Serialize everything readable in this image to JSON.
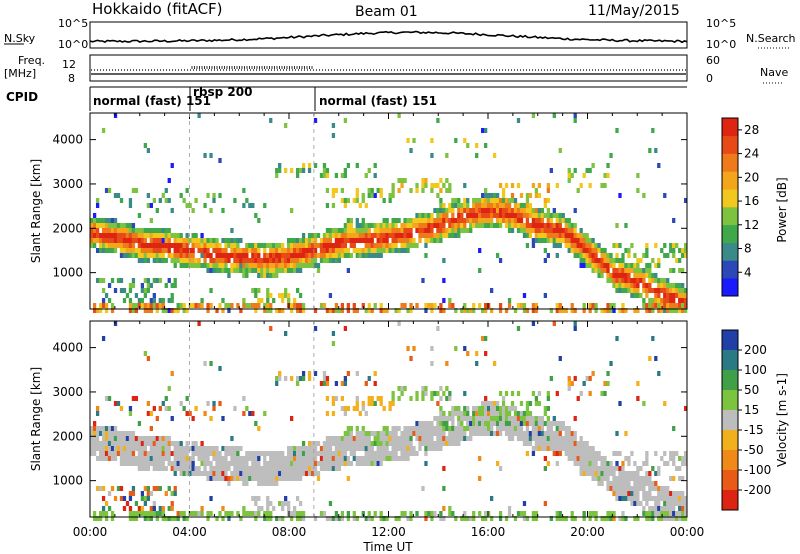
{
  "header": {
    "station": "Hokkaido (fitACF)",
    "beam": "Beam 01",
    "date": "11/May/2015"
  },
  "top_panel": {
    "left_label": "N.Sky",
    "right_label": "N.Search",
    "left_ticks": [
      "10^5",
      "10^0"
    ],
    "right_ticks": [
      "10^5",
      "10^0"
    ]
  },
  "freq_panel": {
    "left_label_1": "Freq.",
    "left_label_2": "[MHz]",
    "left_ticks": [
      "12",
      "8"
    ],
    "right_ticks": [
      "60",
      "0"
    ],
    "right_label": "Nave"
  },
  "cpid": {
    "label": "CPID",
    "segments": [
      {
        "text": "normal (fast) 151",
        "start_hour": 0,
        "end_hour": 4
      },
      {
        "text": "rbsp 200",
        "start_hour": 4,
        "end_hour": 9
      },
      {
        "text": "normal (fast) 151",
        "start_hour": 9,
        "end_hour": 24
      }
    ]
  },
  "axes": {
    "ylabel": "Slant Range [km]",
    "yticks": [
      "1000",
      "2000",
      "3000",
      "4000"
    ],
    "xticks": [
      "00:00",
      "04:00",
      "08:00",
      "12:00",
      "16:00",
      "20:00",
      "00:00"
    ],
    "xlabel": "Time UT"
  },
  "power_colorbar": {
    "label": "Power [dB]",
    "ticks": [
      "4",
      "8",
      "12",
      "16",
      "20",
      "24",
      "28"
    ],
    "colors": [
      "#1a1aff",
      "#2b47b8",
      "#3a8a8a",
      "#3fa84a",
      "#7dc340",
      "#f2c81e",
      "#f3a51c",
      "#ee7a19",
      "#e84a17",
      "#dd2512"
    ]
  },
  "velocity_colorbar": {
    "label": "Velocity [m s-1]",
    "ticks": [
      "200",
      "100",
      "50",
      "15",
      "-15",
      "-50",
      "-100",
      "-200"
    ],
    "colors": [
      "#2040a8",
      "#2a7a86",
      "#3fa047",
      "#7cc440",
      "#bdbdbd",
      "#f2b01d",
      "#ef8a18",
      "#e85a16",
      "#dd2412"
    ]
  },
  "chart_data": [
    {
      "type": "heatmap",
      "panel": "power",
      "title": "",
      "xlabel": "Time UT",
      "ylabel": "Slant Range [km]",
      "xlim": [
        0,
        24
      ],
      "ylim": [
        180,
        4600
      ],
      "colorbar_label": "Power [dB]",
      "color_range": [
        3,
        30
      ],
      "series": [
        {
          "name": "main_echo_range_km",
          "x": [
            0,
            1,
            2,
            3,
            4,
            5,
            6,
            7,
            8,
            9,
            10,
            11,
            12,
            13,
            14,
            15,
            16,
            17,
            18,
            19,
            20,
            21,
            22,
            23,
            24
          ],
          "values": [
            1900,
            1800,
            1650,
            1600,
            1500,
            1400,
            1350,
            1300,
            1350,
            1500,
            1650,
            1720,
            1780,
            1900,
            2050,
            2250,
            2400,
            2300,
            2050,
            1950,
            1500,
            1000,
            800,
            500,
            300
          ]
        }
      ]
    },
    {
      "type": "heatmap",
      "panel": "velocity",
      "title": "",
      "xlabel": "Time UT",
      "ylabel": "Slant Range [km]",
      "xlim": [
        0,
        24
      ],
      "ylim": [
        180,
        4600
      ],
      "colorbar_label": "Velocity [m s-1]",
      "color_range": [
        -200,
        200
      ]
    }
  ]
}
